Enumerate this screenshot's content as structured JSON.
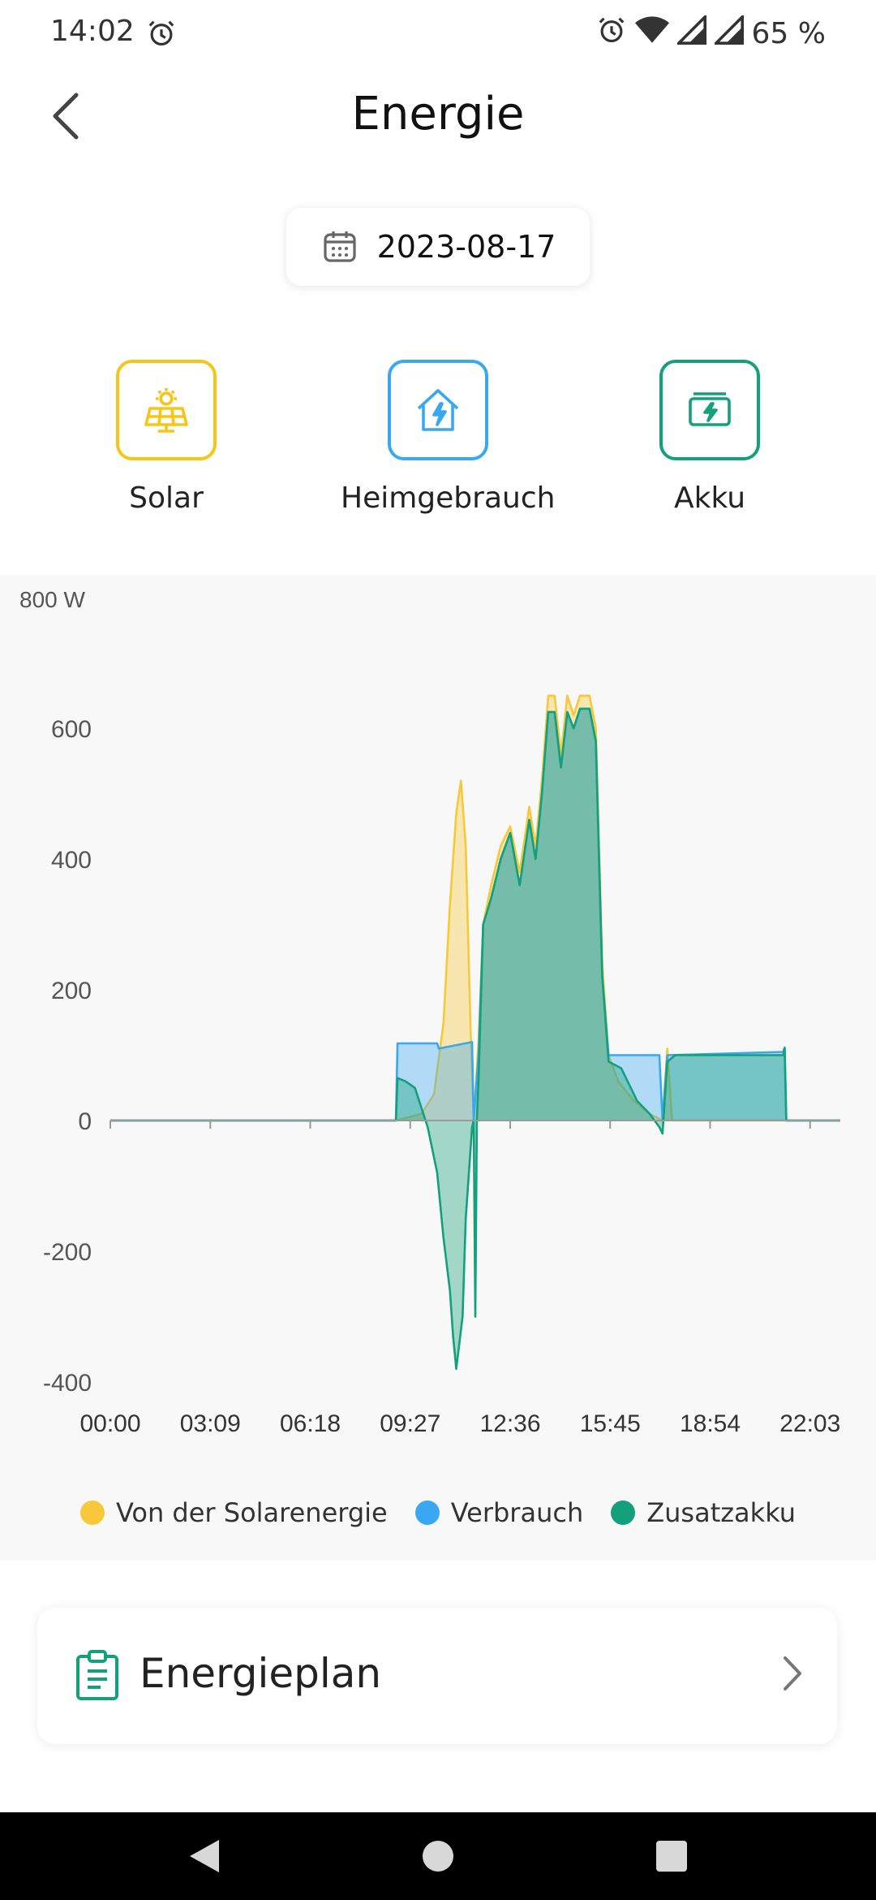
{
  "status_bar": {
    "time": "14:02",
    "battery": "65 %"
  },
  "header": {
    "title": "Energie"
  },
  "date_picker": {
    "value": "2023-08-17"
  },
  "modes": [
    {
      "label": "Solar",
      "icon": "solar-panel-icon",
      "color": "#f5c518"
    },
    {
      "label": "Heimgebrauch",
      "icon": "house-power-icon",
      "color": "#3aa8f0"
    },
    {
      "label": "Akku",
      "icon": "battery-icon",
      "color": "#14a07a"
    }
  ],
  "chart_data": {
    "type": "area",
    "ylim": [
      -400,
      800
    ],
    "y_unit_label": "800 W",
    "y_ticks": [
      "600",
      "400",
      "200",
      "0",
      "-200",
      "-400"
    ],
    "x_tick_labels": [
      "00:00",
      "03:09",
      "06:18",
      "09:27",
      "12:36",
      "15:45",
      "18:54",
      "22:03"
    ],
    "x_range_hours": [
      0,
      23
    ],
    "series": [
      {
        "name": "Von der Solarenergie",
        "color": "#f7c93a",
        "points": [
          [
            0,
            0
          ],
          [
            9.0,
            0
          ],
          [
            9.4,
            5
          ],
          [
            9.8,
            10
          ],
          [
            10.2,
            40
          ],
          [
            10.5,
            150
          ],
          [
            10.7,
            330
          ],
          [
            10.9,
            470
          ],
          [
            11.05,
            520
          ],
          [
            11.2,
            420
          ],
          [
            11.35,
            140
          ],
          [
            11.45,
            0
          ],
          [
            11.6,
            120
          ],
          [
            11.75,
            300
          ],
          [
            12.0,
            360
          ],
          [
            12.3,
            420
          ],
          [
            12.6,
            450
          ],
          [
            12.9,
            380
          ],
          [
            13.2,
            480
          ],
          [
            13.4,
            420
          ],
          [
            13.6,
            520
          ],
          [
            13.8,
            650
          ],
          [
            14.0,
            650
          ],
          [
            14.2,
            560
          ],
          [
            14.4,
            650
          ],
          [
            14.6,
            620
          ],
          [
            14.8,
            650
          ],
          [
            15.1,
            650
          ],
          [
            15.3,
            600
          ],
          [
            15.5,
            240
          ],
          [
            15.7,
            100
          ],
          [
            16.0,
            60
          ],
          [
            16.5,
            30
          ],
          [
            17.0,
            10
          ],
          [
            17.4,
            0
          ],
          [
            17.55,
            110
          ],
          [
            17.7,
            0
          ],
          [
            18.0,
            0
          ],
          [
            23,
            0
          ]
        ]
      },
      {
        "name": "Verbrauch",
        "color": "#3aa8f0",
        "points": [
          [
            0,
            0
          ],
          [
            9.0,
            0
          ],
          [
            9.05,
            118
          ],
          [
            10.3,
            118
          ],
          [
            10.35,
            110
          ],
          [
            11.4,
            120
          ],
          [
            11.45,
            0
          ],
          [
            11.6,
            100
          ],
          [
            11.75,
            300
          ],
          [
            12.0,
            340
          ],
          [
            12.3,
            400
          ],
          [
            12.6,
            440
          ],
          [
            12.9,
            360
          ],
          [
            13.2,
            460
          ],
          [
            13.4,
            400
          ],
          [
            13.6,
            500
          ],
          [
            13.8,
            625
          ],
          [
            14.0,
            625
          ],
          [
            14.2,
            540
          ],
          [
            14.4,
            625
          ],
          [
            14.6,
            600
          ],
          [
            14.8,
            630
          ],
          [
            15.1,
            630
          ],
          [
            15.3,
            580
          ],
          [
            15.5,
            220
          ],
          [
            15.7,
            100
          ],
          [
            17.3,
            100
          ],
          [
            17.4,
            0
          ],
          [
            17.55,
            100
          ],
          [
            21.2,
            105
          ],
          [
            21.25,
            112
          ],
          [
            21.3,
            0
          ],
          [
            23,
            0
          ]
        ]
      },
      {
        "name": "Zusatzakku",
        "color": "#14a07a",
        "points": [
          [
            0,
            0
          ],
          [
            9.0,
            0
          ],
          [
            9.05,
            65
          ],
          [
            9.3,
            60
          ],
          [
            9.6,
            50
          ],
          [
            10.0,
            -10
          ],
          [
            10.3,
            -80
          ],
          [
            10.5,
            -180
          ],
          [
            10.7,
            -260
          ],
          [
            10.8,
            -330
          ],
          [
            10.9,
            -380
          ],
          [
            11.0,
            -340
          ],
          [
            11.1,
            -300
          ],
          [
            11.2,
            -150
          ],
          [
            11.4,
            -10
          ],
          [
            11.45,
            0
          ],
          [
            11.5,
            -300
          ],
          [
            11.55,
            0
          ],
          [
            11.6,
            60
          ],
          [
            11.75,
            300
          ],
          [
            12.0,
            340
          ],
          [
            12.3,
            400
          ],
          [
            12.6,
            440
          ],
          [
            12.9,
            360
          ],
          [
            13.2,
            460
          ],
          [
            13.4,
            400
          ],
          [
            13.6,
            500
          ],
          [
            13.8,
            625
          ],
          [
            14.0,
            625
          ],
          [
            14.2,
            540
          ],
          [
            14.4,
            625
          ],
          [
            14.6,
            600
          ],
          [
            14.8,
            630
          ],
          [
            15.1,
            630
          ],
          [
            15.3,
            580
          ],
          [
            15.5,
            220
          ],
          [
            15.7,
            90
          ],
          [
            16.1,
            80
          ],
          [
            16.6,
            30
          ],
          [
            17.0,
            10
          ],
          [
            17.3,
            -10
          ],
          [
            17.4,
            -20
          ],
          [
            17.55,
            90
          ],
          [
            17.8,
            100
          ],
          [
            21.2,
            100
          ],
          [
            21.25,
            110
          ],
          [
            21.3,
            0
          ],
          [
            23,
            0
          ]
        ]
      }
    ]
  },
  "energy_plan": {
    "label": "Energieplan"
  }
}
